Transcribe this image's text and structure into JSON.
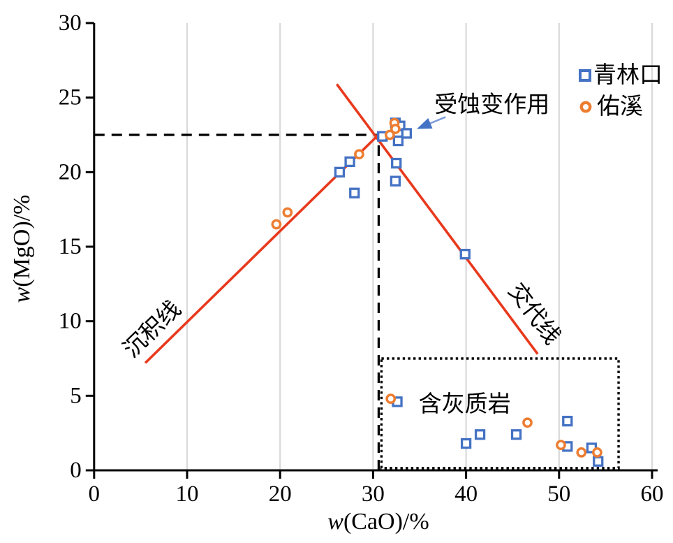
{
  "chart_data": {
    "type": "scatter",
    "xlabel_italic": "w",
    "xlabel_rest": "(CaO)/%",
    "ylabel_italic": "w",
    "ylabel_rest": "(MgO)/%",
    "xlim": [
      0,
      60
    ],
    "ylim": [
      0,
      30
    ],
    "x_ticks": [
      0,
      10,
      20,
      30,
      40,
      50,
      60
    ],
    "y_ticks": [
      0,
      5,
      10,
      15,
      20,
      25,
      30
    ],
    "grid": {
      "vertical": true,
      "horizontal": false
    },
    "legend_position": "top-right",
    "series": [
      {
        "name": "青林口",
        "marker": "square",
        "color": "#4472C4",
        "points": [
          [
            26.4,
            20.0
          ],
          [
            27.5,
            20.7
          ],
          [
            28.0,
            18.6
          ],
          [
            31.0,
            22.4
          ],
          [
            32.4,
            23.3
          ],
          [
            32.9,
            23.1
          ],
          [
            33.6,
            22.6
          ],
          [
            32.7,
            22.1
          ],
          [
            32.5,
            20.6
          ],
          [
            32.4,
            19.4
          ],
          [
            39.9,
            14.5
          ],
          [
            32.6,
            4.6
          ],
          [
            40.0,
            1.8
          ],
          [
            41.5,
            2.4
          ],
          [
            45.4,
            2.4
          ],
          [
            50.9,
            3.3
          ],
          [
            50.9,
            1.6
          ],
          [
            53.5,
            1.5
          ],
          [
            54.2,
            0.6
          ]
        ]
      },
      {
        "name": "佑溪",
        "marker": "circle",
        "color": "#ED7D31",
        "points": [
          [
            19.6,
            16.5
          ],
          [
            20.8,
            17.3
          ],
          [
            28.5,
            21.2
          ],
          [
            32.3,
            23.3
          ],
          [
            32.4,
            22.9
          ],
          [
            31.8,
            22.5
          ],
          [
            31.9,
            4.8
          ],
          [
            46.6,
            3.2
          ],
          [
            50.2,
            1.7
          ],
          [
            52.4,
            1.2
          ],
          [
            54.1,
            1.2
          ]
        ]
      }
    ],
    "ref_lines": [
      {
        "name": "沉积线",
        "color": "#E8391D",
        "from": [
          5.5,
          7.2
        ],
        "to": [
          30.9,
          22.7
        ],
        "label_pos": [
          6.8,
          9.1
        ],
        "label_rotation": -44
      },
      {
        "name": "交代线",
        "color": "#E8391D",
        "from": [
          26.1,
          25.9
        ],
        "to": [
          47.7,
          7.8
        ],
        "label_pos": [
          46.7,
          10.2
        ],
        "label_rotation": 53
      }
    ],
    "dashed_guides": [
      {
        "orientation": "horizontal",
        "y": 22.5,
        "x_from": 0,
        "x_to": 30.4
      },
      {
        "orientation": "vertical",
        "x": 30.6,
        "y_from": 0,
        "y_to": 22.4
      }
    ],
    "dotted_box": {
      "x_from": 30.9,
      "x_to": 56.4,
      "y_from": 0.15,
      "y_to": 7.5,
      "label": "含灰质岩",
      "label_pos": [
        34.9,
        4.4
      ]
    },
    "annotation": {
      "text": "受蚀变作用",
      "text_pos": [
        36.6,
        24.5
      ],
      "arrow_from": [
        37.8,
        23.7
      ],
      "arrow_to": [
        34.7,
        22.9
      ],
      "arrow_line_color": "#7E9CDB",
      "arrow_head_color": "#4472C4"
    },
    "colors": {
      "grid": "#D9D9D9",
      "axis": "#000000",
      "guide_dash": "#000000",
      "marker_fill": "#FFFFFF"
    }
  }
}
